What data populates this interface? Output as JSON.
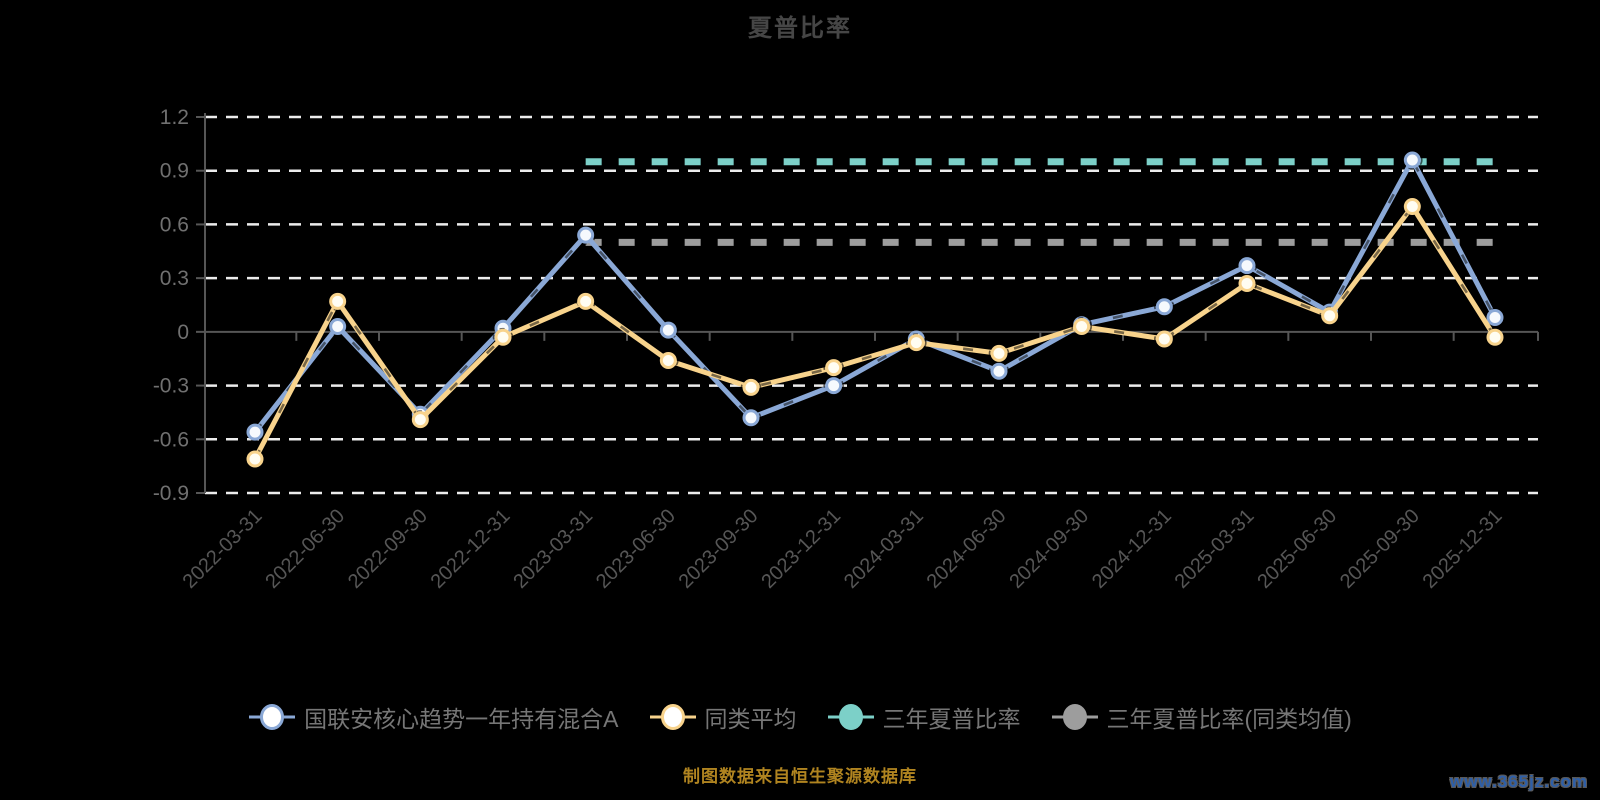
{
  "chart_data": {
    "type": "line",
    "title": "夏普比率",
    "categories": [
      "2022-03-31",
      "2022-06-30",
      "2022-09-30",
      "2022-12-31",
      "2023-03-31",
      "2023-06-30",
      "2023-09-30",
      "2023-12-31",
      "2024-03-31",
      "2024-06-30",
      "2024-09-30",
      "2024-12-31",
      "2025-03-31",
      "2025-06-30",
      "2025-09-30",
      "2025-12-31"
    ],
    "series": [
      {
        "name": "国联安核心趋势一年持有混合A",
        "color": "#8aa8d6",
        "marker": "hollow",
        "values": [
          -0.56,
          0.03,
          -0.46,
          0.02,
          0.54,
          0.01,
          -0.48,
          -0.3,
          -0.04,
          -0.22,
          0.04,
          0.14,
          0.37,
          0.11,
          0.96,
          0.08
        ]
      },
      {
        "name": "同类平均",
        "color": "#f8d38c",
        "marker": "hollow",
        "values": [
          -0.71,
          0.17,
          -0.49,
          -0.03,
          0.17,
          -0.16,
          -0.31,
          -0.2,
          -0.06,
          -0.12,
          0.03,
          -0.04,
          0.27,
          0.09,
          0.7,
          -0.03
        ]
      }
    ],
    "ref_lines": [
      {
        "name": "三年夏普比率",
        "color": "#7cd0c8",
        "value": 0.95,
        "from_index": 4,
        "to_index": 15,
        "style": "dashed"
      },
      {
        "name": "三年夏普比率(同类均值)",
        "color": "#9d9d9d",
        "value": 0.5,
        "from_index": 4,
        "to_index": 15,
        "style": "dashed"
      }
    ],
    "xlabel": "",
    "ylabel": "",
    "ylim": [
      -0.9,
      1.2
    ],
    "yticks": [
      "1.2",
      "0.9",
      "0.6",
      "0.3",
      "0",
      "-0.3",
      "-0.6",
      "-0.9"
    ],
    "grid": "horizontal-dashed-white",
    "legend_position": "bottom"
  },
  "footer": {
    "source_note": "制图数据来自恒生聚源数据库"
  },
  "watermark": {
    "text": "www.365jz.com"
  },
  "style_colors": {
    "background": "#000000",
    "gridline": "#ececec",
    "axis": "#565656",
    "y_tick_label": "#707070",
    "x_tick_label": "#565656",
    "title": "#464646",
    "legend_text": "#767676",
    "footer_text": "#b08420",
    "watermark_text": "#2e5fa8"
  }
}
